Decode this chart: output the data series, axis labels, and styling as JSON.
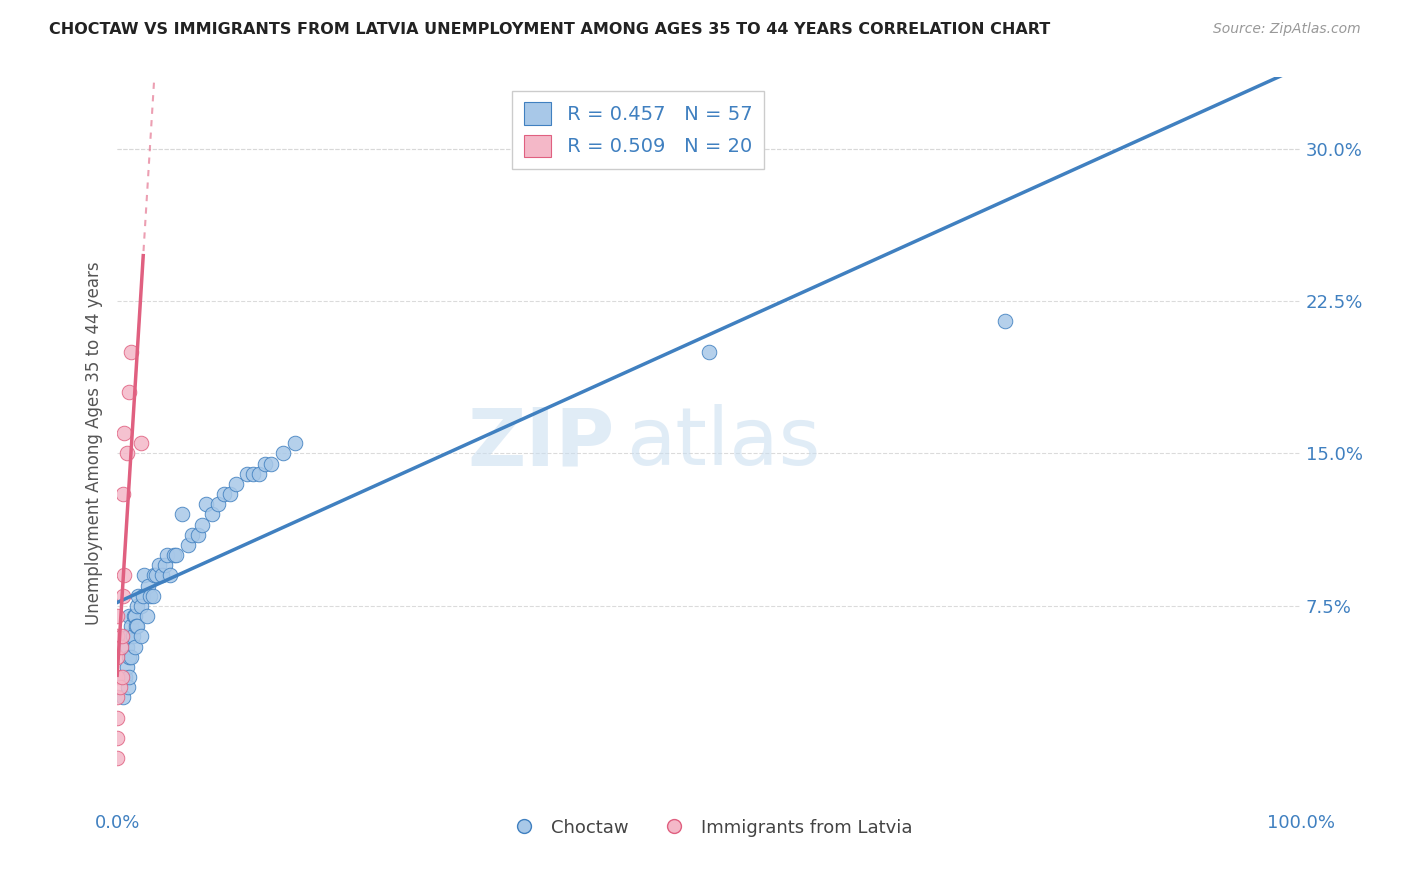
{
  "title": "CHOCTAW VS IMMIGRANTS FROM LATVIA UNEMPLOYMENT AMONG AGES 35 TO 44 YEARS CORRELATION CHART",
  "source": "Source: ZipAtlas.com",
  "ylabel": "Unemployment Among Ages 35 to 44 years",
  "xlim": [
    0,
    1.0
  ],
  "ylim": [
    -0.025,
    0.335
  ],
  "yticks": [
    0.075,
    0.15,
    0.225,
    0.3
  ],
  "ytick_labels": [
    "7.5%",
    "15.0%",
    "22.5%",
    "30.0%"
  ],
  "watermark_zip": "ZIP",
  "watermark_atlas": "atlas",
  "legend_label1": " R = 0.457   N = 57",
  "legend_label2": " R = 0.509   N = 20",
  "bottom_label1": "Choctaw",
  "bottom_label2": "Immigrants from Latvia",
  "choctaw_color": "#a8c8e8",
  "latvia_color": "#f4b8c8",
  "choctaw_line_color": "#4080c0",
  "latvia_line_color": "#e06080",
  "choctaw_x": [
    0.005,
    0.007,
    0.008,
    0.008,
    0.009,
    0.009,
    0.01,
    0.01,
    0.01,
    0.01,
    0.012,
    0.012,
    0.013,
    0.014,
    0.015,
    0.015,
    0.016,
    0.017,
    0.017,
    0.018,
    0.02,
    0.02,
    0.022,
    0.023,
    0.025,
    0.026,
    0.028,
    0.03,
    0.031,
    0.033,
    0.035,
    0.038,
    0.04,
    0.042,
    0.045,
    0.048,
    0.05,
    0.055,
    0.06,
    0.063,
    0.068,
    0.072,
    0.075,
    0.08,
    0.085,
    0.09,
    0.095,
    0.1,
    0.11,
    0.115,
    0.12,
    0.125,
    0.13,
    0.14,
    0.15,
    0.5,
    0.75
  ],
  "choctaw_y": [
    0.03,
    0.04,
    0.045,
    0.055,
    0.035,
    0.06,
    0.04,
    0.05,
    0.06,
    0.07,
    0.05,
    0.065,
    0.06,
    0.07,
    0.055,
    0.07,
    0.065,
    0.065,
    0.075,
    0.08,
    0.06,
    0.075,
    0.08,
    0.09,
    0.07,
    0.085,
    0.08,
    0.08,
    0.09,
    0.09,
    0.095,
    0.09,
    0.095,
    0.1,
    0.09,
    0.1,
    0.1,
    0.12,
    0.105,
    0.11,
    0.11,
    0.115,
    0.125,
    0.12,
    0.125,
    0.13,
    0.13,
    0.135,
    0.14,
    0.14,
    0.14,
    0.145,
    0.145,
    0.15,
    0.155,
    0.2,
    0.215
  ],
  "latvia_x": [
    0.0,
    0.0,
    0.0,
    0.0,
    0.0,
    0.0,
    0.0,
    0.0,
    0.002,
    0.003,
    0.004,
    0.004,
    0.005,
    0.005,
    0.006,
    0.006,
    0.008,
    0.01,
    0.012,
    0.02
  ],
  "latvia_y": [
    0.0,
    0.01,
    0.02,
    0.03,
    0.04,
    0.05,
    0.06,
    0.07,
    0.035,
    0.055,
    0.04,
    0.06,
    0.08,
    0.13,
    0.09,
    0.16,
    0.15,
    0.18,
    0.2,
    0.155
  ],
  "choctaw_regression": [
    0.062,
    0.222
  ],
  "latvia_regression_solid": [
    0.045,
    0.2
  ],
  "latvia_regression_dashed_ystart": 0.2,
  "latvia_regression_dashed_yend": 0.32,
  "background_color": "#ffffff",
  "grid_color": "#d8d8d8"
}
